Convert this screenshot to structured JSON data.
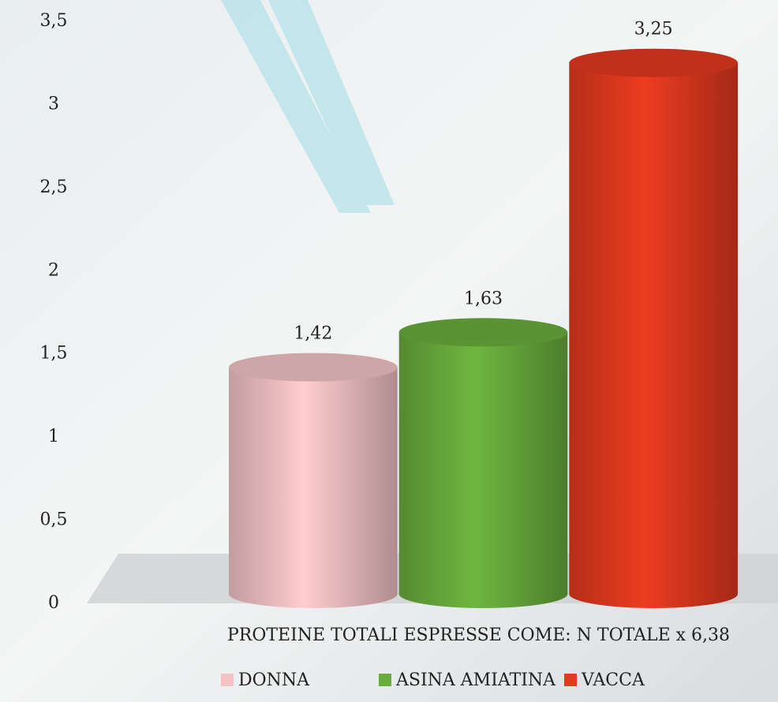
{
  "chart_data": {
    "type": "bar",
    "categories": [
      "PROTEINE TOTALI ESPRESSE COME: N TOTALE x 6,38"
    ],
    "series": [
      {
        "name": "DONNA",
        "color": "#f3c3c6",
        "values": [
          1.42
        ],
        "value_labels": [
          "1,42"
        ]
      },
      {
        "name": "ASINA AMIATINA",
        "color": "#6aad3d",
        "values": [
          1.63
        ],
        "value_labels": [
          "1,63"
        ]
      },
      {
        "name": "VACCA",
        "color": "#e2391f",
        "values": [
          3.25
        ],
        "value_labels": [
          "3,25"
        ]
      }
    ],
    "ylim": [
      0,
      3.5
    ],
    "yticks": [
      0,
      {
        "value": 0.5,
        "label": "0,5"
      },
      1,
      {
        "value": 1.5,
        "label": "1,5"
      },
      2,
      {
        "value": 2.5,
        "label": "2,5"
      },
      3,
      {
        "value": 3.5,
        "label": "3,5"
      }
    ],
    "legend": "bottom"
  }
}
